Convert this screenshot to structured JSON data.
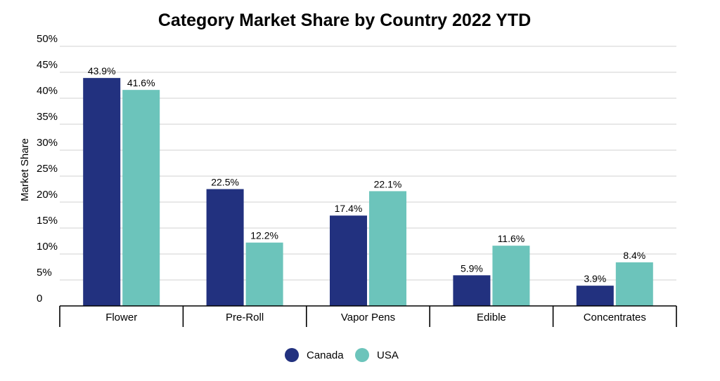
{
  "chart_data": {
    "type": "bar",
    "title": "Category Market Share by Country 2022 YTD",
    "xlabel": "",
    "ylabel": "Market Share",
    "ylim": [
      0,
      50
    ],
    "yticks": [
      {
        "value": 0,
        "label": "0"
      },
      {
        "value": 5,
        "label": "5%"
      },
      {
        "value": 10,
        "label": "10%"
      },
      {
        "value": 15,
        "label": "15%"
      },
      {
        "value": 20,
        "label": "20%"
      },
      {
        "value": 25,
        "label": "25%"
      },
      {
        "value": 30,
        "label": "30%"
      },
      {
        "value": 35,
        "label": "35%"
      },
      {
        "value": 40,
        "label": "40%"
      },
      {
        "value": 45,
        "label": "45%"
      },
      {
        "value": 50,
        "label": "50%"
      }
    ],
    "categories": [
      "Flower",
      "Pre-Roll",
      "Vapor Pens",
      "Edible",
      "Concentrates"
    ],
    "series": [
      {
        "name": "Canada",
        "color": "#22317f",
        "values": [
          43.9,
          22.5,
          17.4,
          5.9,
          3.9
        ],
        "labels": [
          "43.9%",
          "22.5%",
          "17.4%",
          "5.9%",
          "3.9%"
        ]
      },
      {
        "name": "USA",
        "color": "#6cc4bb",
        "values": [
          41.6,
          12.2,
          22.1,
          11.6,
          8.4
        ],
        "labels": [
          "41.6%",
          "12.2%",
          "22.1%",
          "11.6%",
          "8.4%"
        ]
      }
    ],
    "grid": true,
    "legend_position": "bottom-center"
  }
}
